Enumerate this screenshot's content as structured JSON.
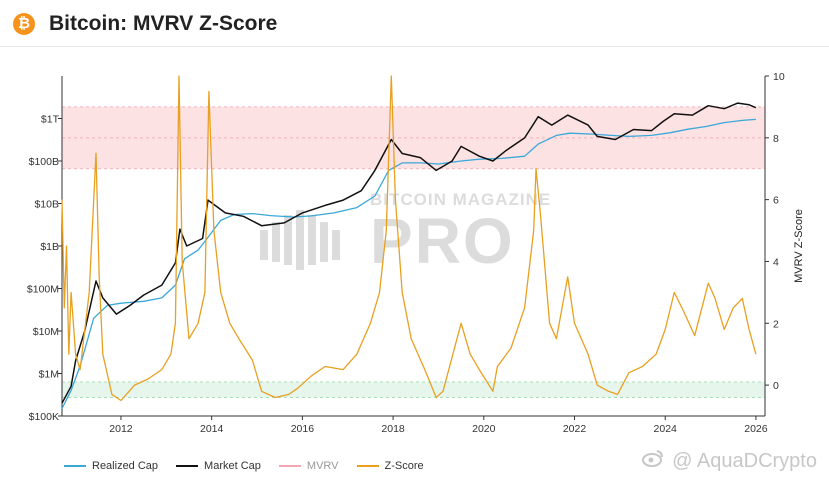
{
  "header": {
    "logo_icon": "bitcoin-icon",
    "title": "Bitcoin: MVRV Z-Score"
  },
  "watermarks": {
    "center_top": "BITCOIN MAGAZINE",
    "center_main": "PRO",
    "bottom_right": "@ AquaDCrypto",
    "bottom_icon": "weibo-icon"
  },
  "colors": {
    "realized": "#3aa8d8",
    "market": "#111111",
    "mvrv": "#f4a7b0",
    "zscore": "#e8a020"
  },
  "chart_data": {
    "type": "line",
    "x_ticks": [
      "2012",
      "2014",
      "2016",
      "2018",
      "2020",
      "2022",
      "2024",
      "2026"
    ],
    "xlim": [
      2010.7,
      2026.2
    ],
    "y_left": {
      "scale": "log",
      "ticks": [
        "$100K",
        "$1M",
        "$10M",
        "$100M",
        "$1B",
        "$10B",
        "$100B",
        "$1T"
      ],
      "ylim": [
        100000,
        10000000000000
      ]
    },
    "y_right": {
      "label": "MVRV Z-Score",
      "ticks": [
        "0",
        "2",
        "4",
        "6",
        "8",
        "10"
      ],
      "ylim": [
        -1,
        10
      ]
    },
    "bands": [
      {
        "axis": "right",
        "from": 7,
        "to": 9,
        "color": "#fde2e4"
      },
      {
        "axis": "right",
        "from": -0.4,
        "to": 0.1,
        "color": "#e6f6ec"
      }
    ],
    "legend": [
      "Realized Cap",
      "Market Cap",
      "MVRV",
      "Z-Score"
    ],
    "series": [
      {
        "name": "Realized Cap",
        "axis": "left",
        "color": "#3aa8d8",
        "points": [
          [
            2010.7,
            150000
          ],
          [
            2010.9,
            400000
          ],
          [
            2011.1,
            1500000
          ],
          [
            2011.4,
            20000000
          ],
          [
            2011.7,
            40000000
          ],
          [
            2012.0,
            45000000
          ],
          [
            2012.5,
            50000000
          ],
          [
            2012.9,
            60000000
          ],
          [
            2013.2,
            120000000
          ],
          [
            2013.4,
            500000000
          ],
          [
            2013.7,
            800000000
          ],
          [
            2013.9,
            1500000000
          ],
          [
            2014.2,
            4000000000
          ],
          [
            2014.5,
            5500000000
          ],
          [
            2014.9,
            5800000000
          ],
          [
            2015.3,
            5200000000
          ],
          [
            2015.8,
            4800000000
          ],
          [
            2016.2,
            5100000000
          ],
          [
            2016.7,
            6000000000
          ],
          [
            2017.2,
            8000000000
          ],
          [
            2017.6,
            15000000000
          ],
          [
            2017.9,
            60000000000
          ],
          [
            2018.2,
            90000000000
          ],
          [
            2018.6,
            90000000000
          ],
          [
            2019.0,
            85000000000
          ],
          [
            2019.5,
            100000000000
          ],
          [
            2019.9,
            110000000000
          ],
          [
            2020.4,
            115000000000
          ],
          [
            2020.9,
            130000000000
          ],
          [
            2021.2,
            250000000000
          ],
          [
            2021.6,
            400000000000
          ],
          [
            2021.9,
            450000000000
          ],
          [
            2022.4,
            430000000000
          ],
          [
            2022.8,
            400000000000
          ],
          [
            2023.2,
            380000000000
          ],
          [
            2023.7,
            400000000000
          ],
          [
            2024.1,
            460000000000
          ],
          [
            2024.5,
            560000000000
          ],
          [
            2024.9,
            650000000000
          ],
          [
            2025.3,
            800000000000
          ],
          [
            2025.7,
            900000000000
          ],
          [
            2026.0,
            950000000000
          ]
        ]
      },
      {
        "name": "Market Cap",
        "axis": "left",
        "color": "#111111",
        "points": [
          [
            2010.7,
            200000
          ],
          [
            2010.9,
            500000
          ],
          [
            2011.0,
            2000000
          ],
          [
            2011.2,
            10000000
          ],
          [
            2011.45,
            150000000
          ],
          [
            2011.6,
            60000000
          ],
          [
            2011.9,
            25000000
          ],
          [
            2012.2,
            40000000
          ],
          [
            2012.5,
            70000000
          ],
          [
            2012.9,
            120000000
          ],
          [
            2013.2,
            400000000
          ],
          [
            2013.3,
            2500000000
          ],
          [
            2013.45,
            1000000000
          ],
          [
            2013.8,
            1500000000
          ],
          [
            2013.92,
            12000000000
          ],
          [
            2014.3,
            6000000000
          ],
          [
            2014.7,
            5000000000
          ],
          [
            2015.1,
            3000000000
          ],
          [
            2015.6,
            3500000000
          ],
          [
            2016.0,
            6000000000
          ],
          [
            2016.5,
            9000000000
          ],
          [
            2016.9,
            12000000000
          ],
          [
            2017.3,
            20000000000
          ],
          [
            2017.6,
            60000000000
          ],
          [
            2017.96,
            320000000000
          ],
          [
            2018.2,
            150000000000
          ],
          [
            2018.6,
            120000000000
          ],
          [
            2018.95,
            60000000000
          ],
          [
            2019.3,
            100000000000
          ],
          [
            2019.5,
            220000000000
          ],
          [
            2019.9,
            130000000000
          ],
          [
            2020.2,
            100000000000
          ],
          [
            2020.5,
            180000000000
          ],
          [
            2020.9,
            350000000000
          ],
          [
            2021.2,
            1100000000000
          ],
          [
            2021.5,
            700000000000
          ],
          [
            2021.85,
            1200000000000
          ],
          [
            2022.3,
            700000000000
          ],
          [
            2022.5,
            380000000000
          ],
          [
            2022.9,
            320000000000
          ],
          [
            2023.3,
            550000000000
          ],
          [
            2023.7,
            520000000000
          ],
          [
            2023.95,
            850000000000
          ],
          [
            2024.2,
            1300000000000
          ],
          [
            2024.6,
            1200000000000
          ],
          [
            2024.95,
            2000000000000
          ],
          [
            2025.3,
            1700000000000
          ],
          [
            2025.6,
            2300000000000
          ],
          [
            2025.85,
            2100000000000
          ],
          [
            2026.0,
            1800000000000
          ]
        ]
      },
      {
        "name": "Z-Score",
        "axis": "right",
        "color": "#e8a020",
        "points": [
          [
            2010.7,
            6
          ],
          [
            2010.75,
            2.5
          ],
          [
            2010.8,
            4.5
          ],
          [
            2010.85,
            1
          ],
          [
            2010.9,
            3
          ],
          [
            2011.0,
            1
          ],
          [
            2011.1,
            0.5
          ],
          [
            2011.3,
            3
          ],
          [
            2011.45,
            7.5
          ],
          [
            2011.52,
            3.5
          ],
          [
            2011.6,
            1
          ],
          [
            2011.8,
            -0.3
          ],
          [
            2012.0,
            -0.5
          ],
          [
            2012.3,
            0
          ],
          [
            2012.6,
            0.2
          ],
          [
            2012.9,
            0.5
          ],
          [
            2013.1,
            1
          ],
          [
            2013.2,
            2
          ],
          [
            2013.28,
            10
          ],
          [
            2013.35,
            4
          ],
          [
            2013.5,
            1.5
          ],
          [
            2013.7,
            2
          ],
          [
            2013.85,
            3
          ],
          [
            2013.94,
            9.5
          ],
          [
            2014.05,
            5
          ],
          [
            2014.2,
            3
          ],
          [
            2014.4,
            2
          ],
          [
            2014.6,
            1.5
          ],
          [
            2014.9,
            0.8
          ],
          [
            2015.1,
            -0.2
          ],
          [
            2015.4,
            -0.4
          ],
          [
            2015.7,
            -0.3
          ],
          [
            2015.9,
            -0.1
          ],
          [
            2016.2,
            0.3
          ],
          [
            2016.5,
            0.6
          ],
          [
            2016.9,
            0.5
          ],
          [
            2017.2,
            1
          ],
          [
            2017.5,
            2
          ],
          [
            2017.7,
            3
          ],
          [
            2017.85,
            5
          ],
          [
            2017.96,
            10
          ],
          [
            2018.05,
            6
          ],
          [
            2018.2,
            3
          ],
          [
            2018.4,
            1.5
          ],
          [
            2018.7,
            0.5
          ],
          [
            2018.95,
            -0.4
          ],
          [
            2019.1,
            -0.2
          ],
          [
            2019.5,
            2
          ],
          [
            2019.7,
            1
          ],
          [
            2019.9,
            0.5
          ],
          [
            2020.2,
            -0.2
          ],
          [
            2020.3,
            0.6
          ],
          [
            2020.6,
            1.2
          ],
          [
            2020.9,
            2.5
          ],
          [
            2021.1,
            5
          ],
          [
            2021.15,
            7
          ],
          [
            2021.25,
            5.5
          ],
          [
            2021.45,
            2
          ],
          [
            2021.6,
            1.5
          ],
          [
            2021.85,
            3.5
          ],
          [
            2022.0,
            2
          ],
          [
            2022.3,
            1
          ],
          [
            2022.5,
            0
          ],
          [
            2022.75,
            -0.2
          ],
          [
            2022.95,
            -0.3
          ],
          [
            2023.2,
            0.4
          ],
          [
            2023.5,
            0.6
          ],
          [
            2023.8,
            1
          ],
          [
            2024.0,
            1.8
          ],
          [
            2024.2,
            3
          ],
          [
            2024.4,
            2.4
          ],
          [
            2024.65,
            1.6
          ],
          [
            2024.95,
            3.3
          ],
          [
            2025.1,
            2.8
          ],
          [
            2025.3,
            1.8
          ],
          [
            2025.5,
            2.5
          ],
          [
            2025.7,
            2.8
          ],
          [
            2025.85,
            1.8
          ],
          [
            2026.0,
            1
          ]
        ]
      }
    ]
  }
}
